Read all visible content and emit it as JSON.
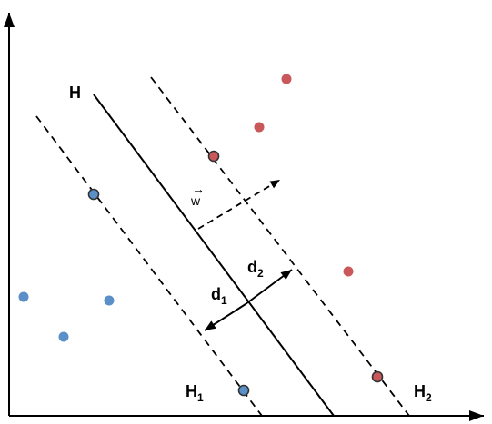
{
  "labels": {
    "H": "H",
    "H1_main": "H",
    "H1_sub": "1",
    "H2_main": "H",
    "H2_sub": "2",
    "d1_main": "d",
    "d1_sub": "1",
    "d2_main": "d",
    "d2_sub": "2",
    "w": "w",
    "w_arrow": "→"
  },
  "colors": {
    "blue": "#5b8fc8",
    "red": "#c9585b",
    "line": "#000000",
    "outline": "#333333"
  }
}
